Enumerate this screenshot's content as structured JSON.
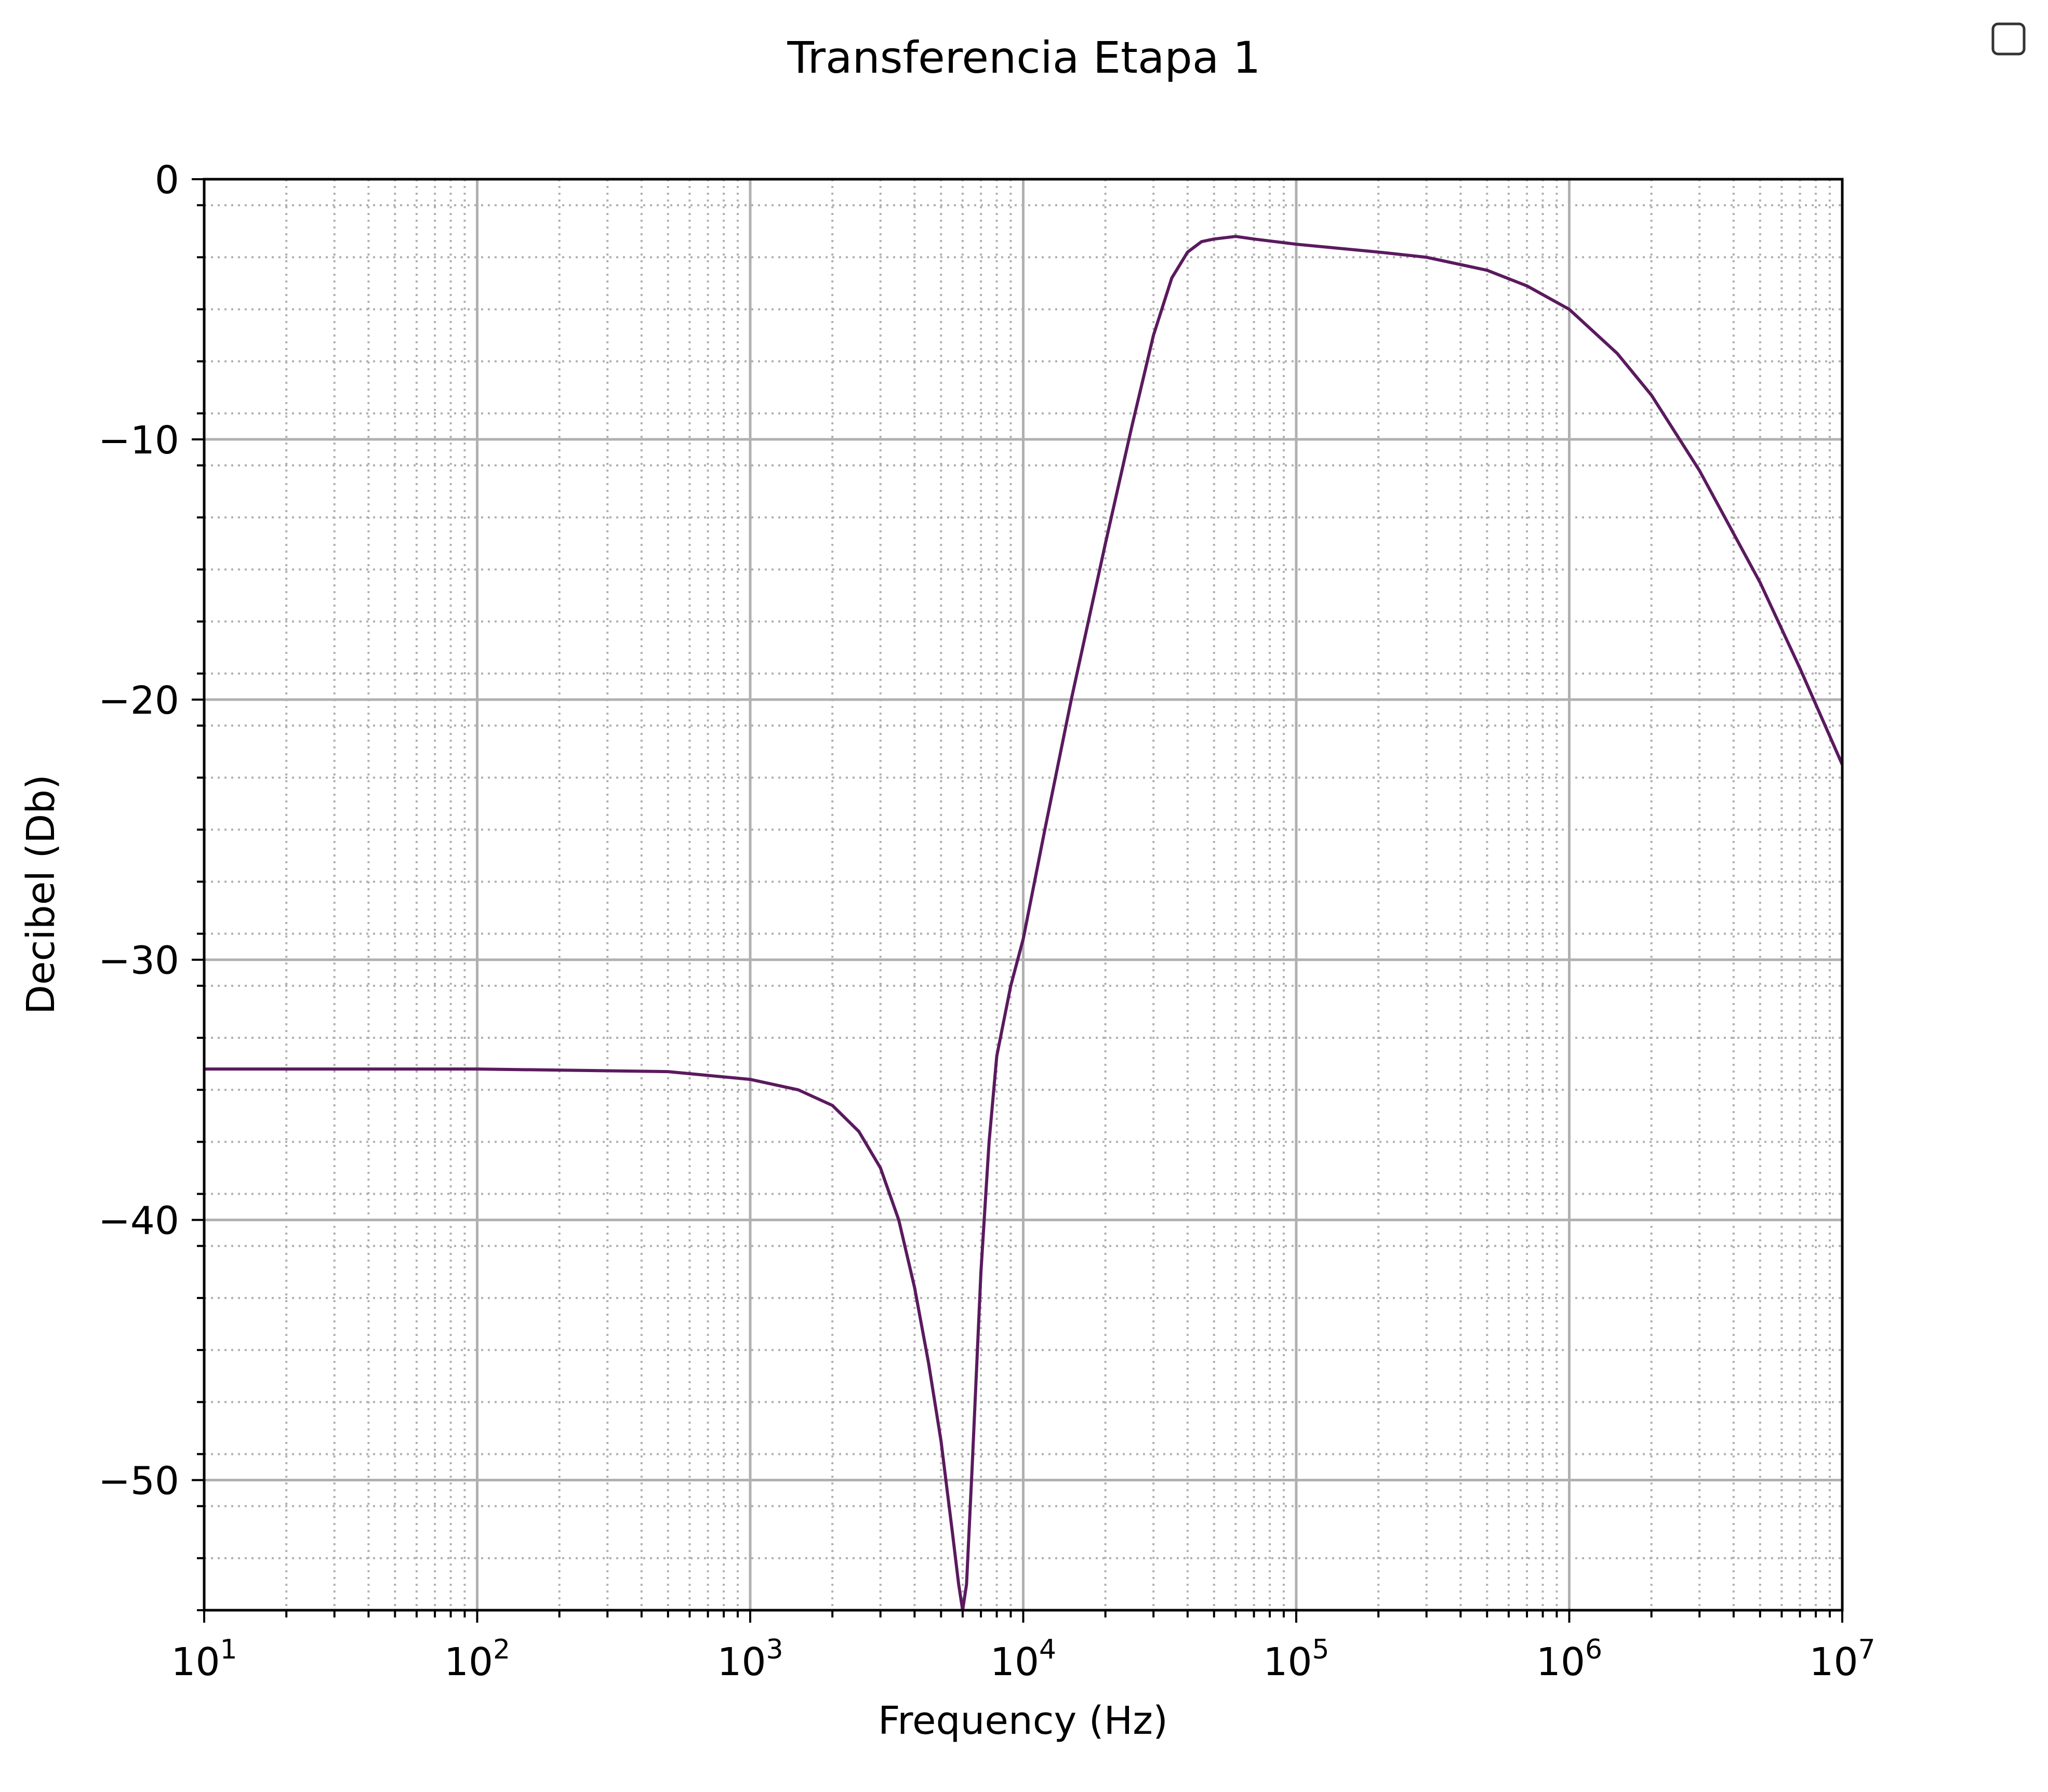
{
  "chart_data": {
    "type": "line",
    "title": "Transferencia Etapa 1",
    "xlabel": "Frequency (Hz)",
    "ylabel": "Decibel (Db)",
    "xscale": "log",
    "xlim": [
      10,
      10000000
    ],
    "ylim": [
      -55,
      0
    ],
    "grid": {
      "major": "solid",
      "minor": "dotted"
    },
    "legend": "top-right (empty box)",
    "line_color": "#5a1a5e",
    "x_ticks": [
      {
        "base": "10",
        "exp": "1",
        "value": 10
      },
      {
        "base": "10",
        "exp": "2",
        "value": 100
      },
      {
        "base": "10",
        "exp": "3",
        "value": 1000
      },
      {
        "base": "10",
        "exp": "4",
        "value": 10000
      },
      {
        "base": "10",
        "exp": "5",
        "value": 100000
      },
      {
        "base": "10",
        "exp": "6",
        "value": 1000000
      },
      {
        "base": "10",
        "exp": "7",
        "value": 10000000
      }
    ],
    "y_ticks": [
      {
        "label": "0",
        "value": 0
      },
      {
        "label": "−10",
        "value": -10
      },
      {
        "label": "−20",
        "value": -20
      },
      {
        "label": "−30",
        "value": -30
      },
      {
        "label": "−40",
        "value": -40
      },
      {
        "label": "−50",
        "value": -50
      }
    ],
    "series": [
      {
        "x": [
          10,
          100,
          500,
          1000,
          1500,
          2000,
          2500,
          3000,
          3500,
          4000,
          4500,
          5000,
          5500,
          5800,
          6000,
          6200,
          6500,
          7000,
          7500,
          8000,
          9000,
          10000,
          12000,
          15000,
          20000,
          25000,
          30000,
          35000,
          40000,
          45000,
          50000,
          60000,
          70000,
          100000,
          200000,
          300000,
          500000,
          700000,
          1000000,
          1500000,
          2000000,
          3000000,
          5000000,
          7000000,
          10000000
        ],
        "y": [
          -34.2,
          -34.2,
          -34.3,
          -34.6,
          -35.0,
          -35.6,
          -36.6,
          -38.0,
          -40.0,
          -42.6,
          -45.5,
          -48.5,
          -52.0,
          -54.0,
          -55.0,
          -54.0,
          -49.5,
          -42.0,
          -37.0,
          -33.7,
          -31.0,
          -29.2,
          -25.0,
          -20.0,
          -14.0,
          -9.5,
          -6.0,
          -3.8,
          -2.8,
          -2.4,
          -2.3,
          -2.2,
          -2.3,
          -2.5,
          -2.8,
          -3.0,
          -3.5,
          -4.1,
          -5.0,
          -6.7,
          -8.3,
          -11.2,
          -15.5,
          -18.8,
          -22.5
        ]
      }
    ]
  }
}
